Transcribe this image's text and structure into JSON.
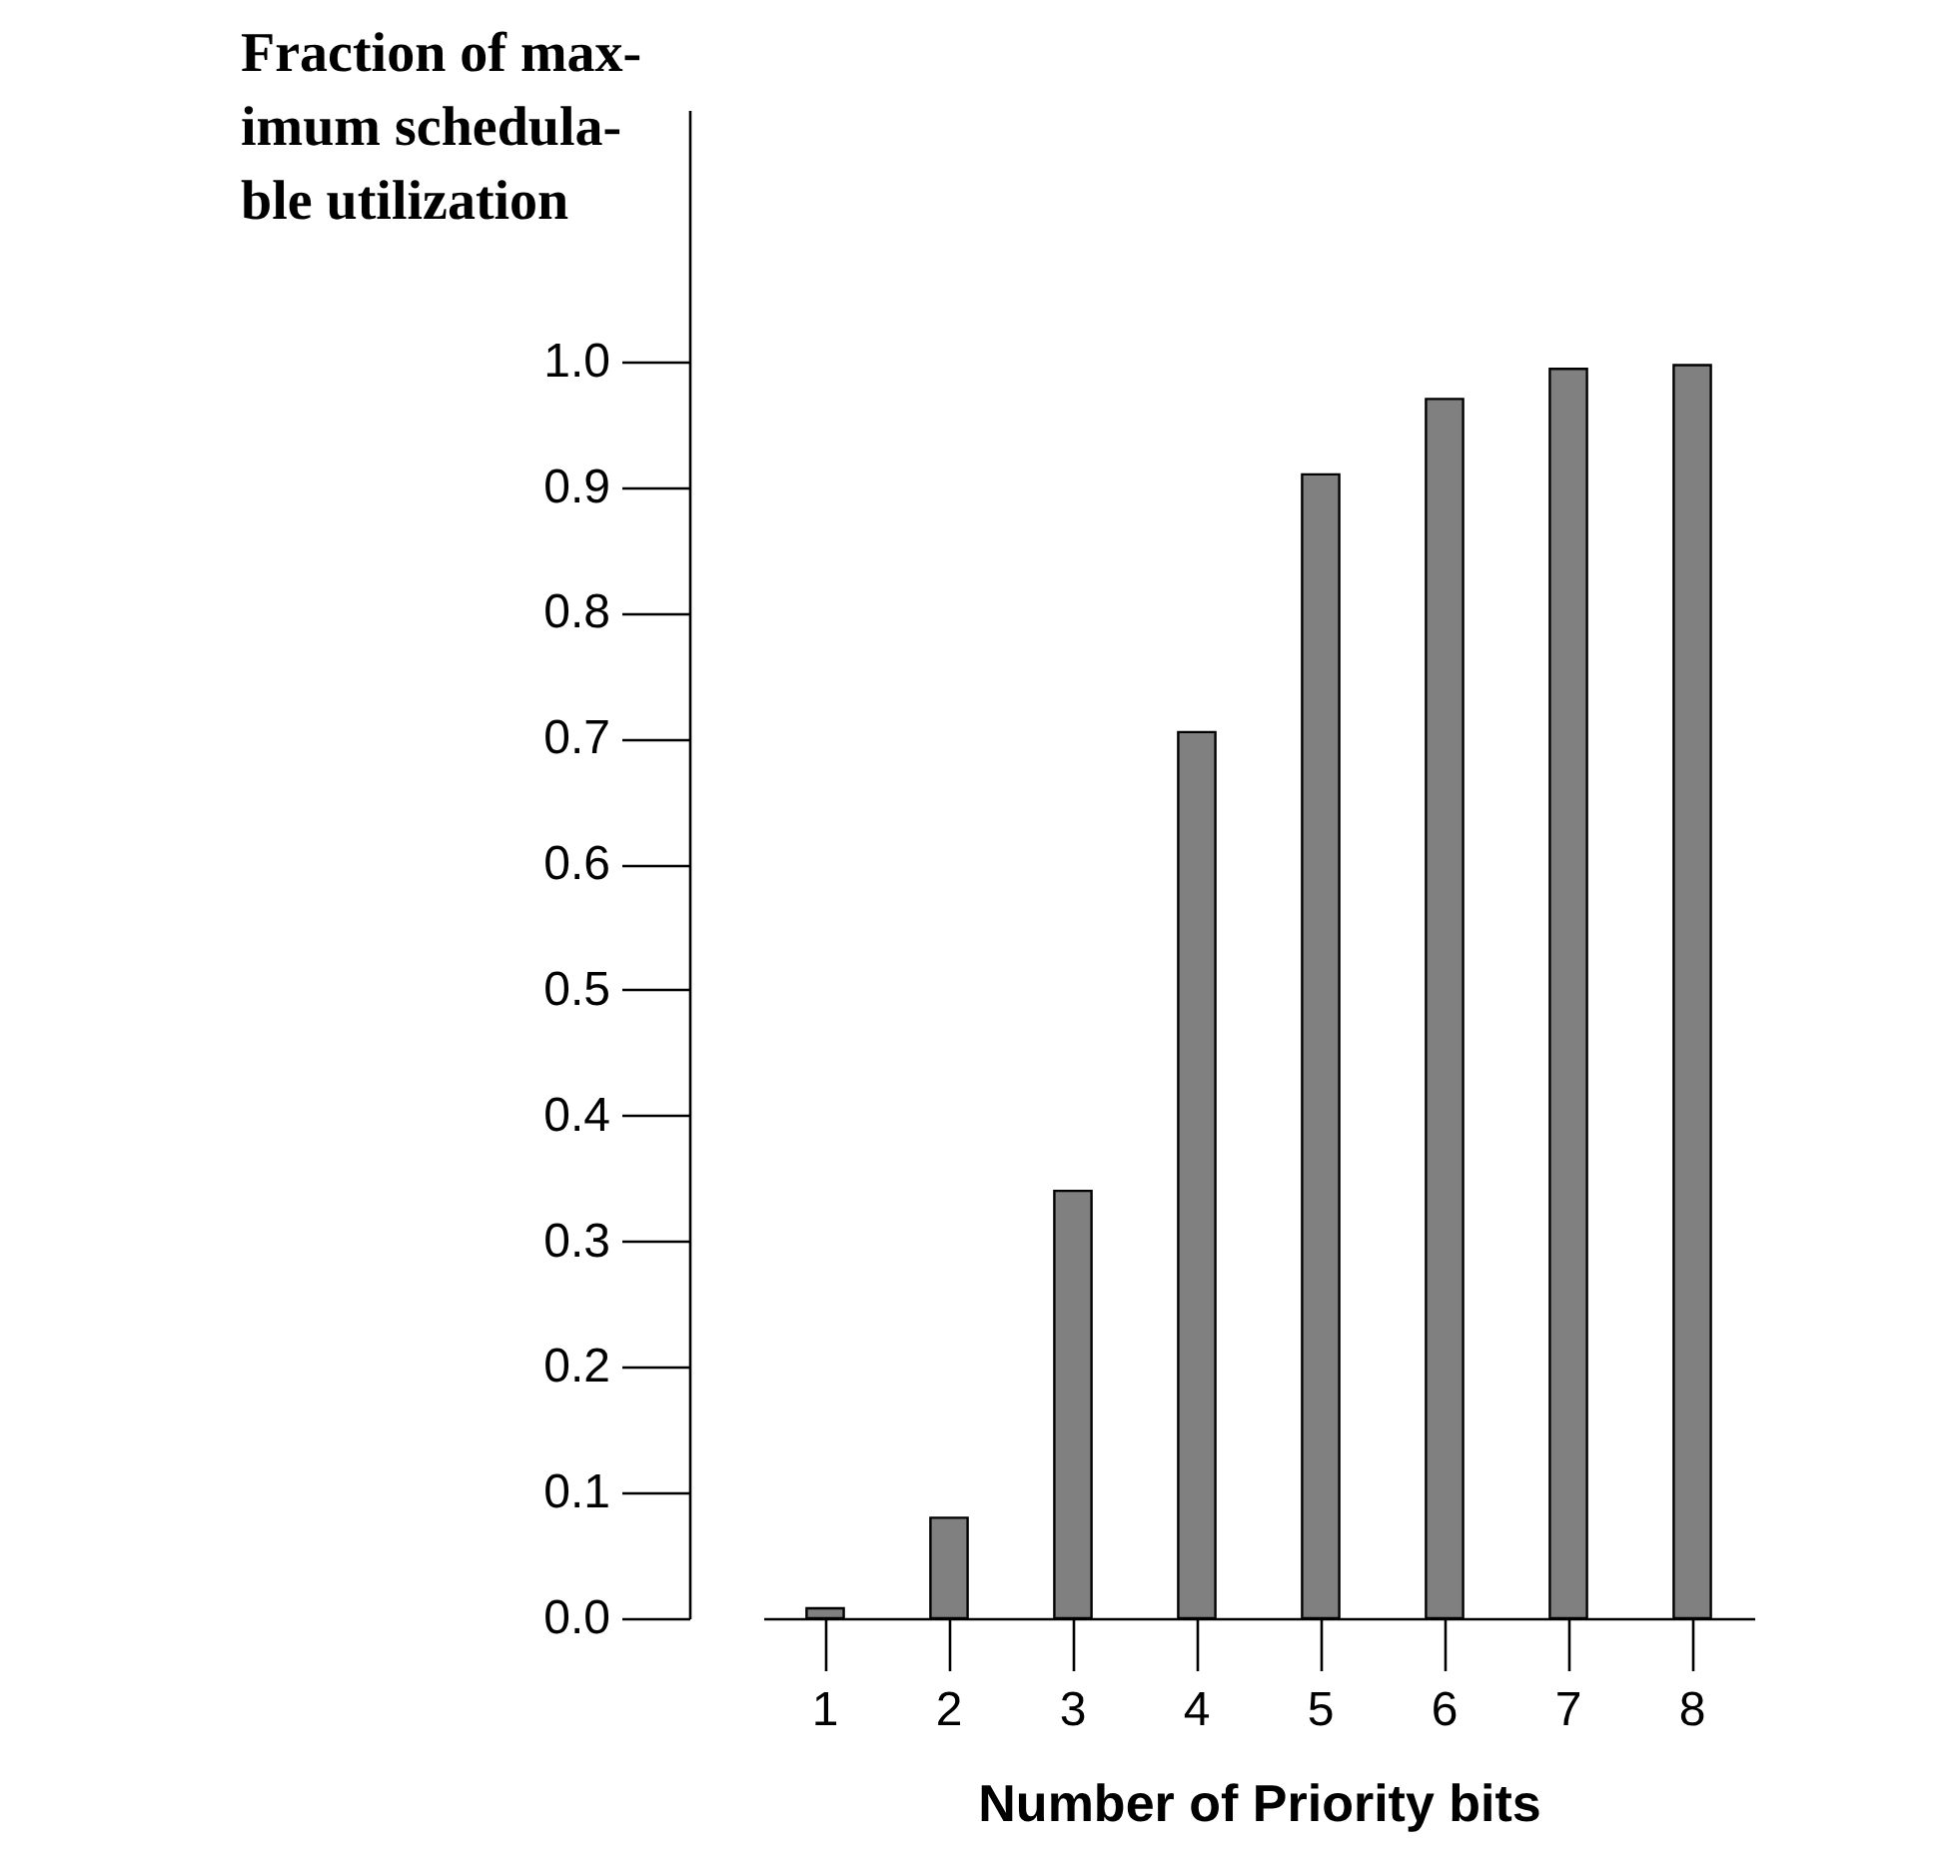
{
  "chart_data": {
    "type": "bar",
    "xlabel": "Number of Priority bits",
    "ylabel": "Fraction of max-\nimum schedula-\nble utilization",
    "categories": [
      "1",
      "2",
      "3",
      "4",
      "5",
      "6",
      "7",
      "8"
    ],
    "values": [
      0.008,
      0.08,
      0.34,
      0.705,
      0.91,
      0.97,
      0.994,
      0.997
    ],
    "color": "#808080",
    "ylim": [
      0,
      1.2
    ],
    "yticks": [
      {
        "value": 0,
        "label": "0.0"
      },
      {
        "value": 0.1,
        "label": "0.1"
      },
      {
        "value": 0.2,
        "label": "0.2"
      },
      {
        "value": 0.3,
        "label": "0.3"
      },
      {
        "value": 0.4,
        "label": "0.4"
      },
      {
        "value": 0.5,
        "label": "0.5"
      },
      {
        "value": 0.6,
        "label": "0.6"
      },
      {
        "value": 0.7,
        "label": "0.7"
      },
      {
        "value": 0.8,
        "label": "0.8"
      },
      {
        "value": 0.9,
        "label": "0.9"
      },
      {
        "value": 1.0,
        "label": "1.0"
      }
    ],
    "grid": false
  }
}
